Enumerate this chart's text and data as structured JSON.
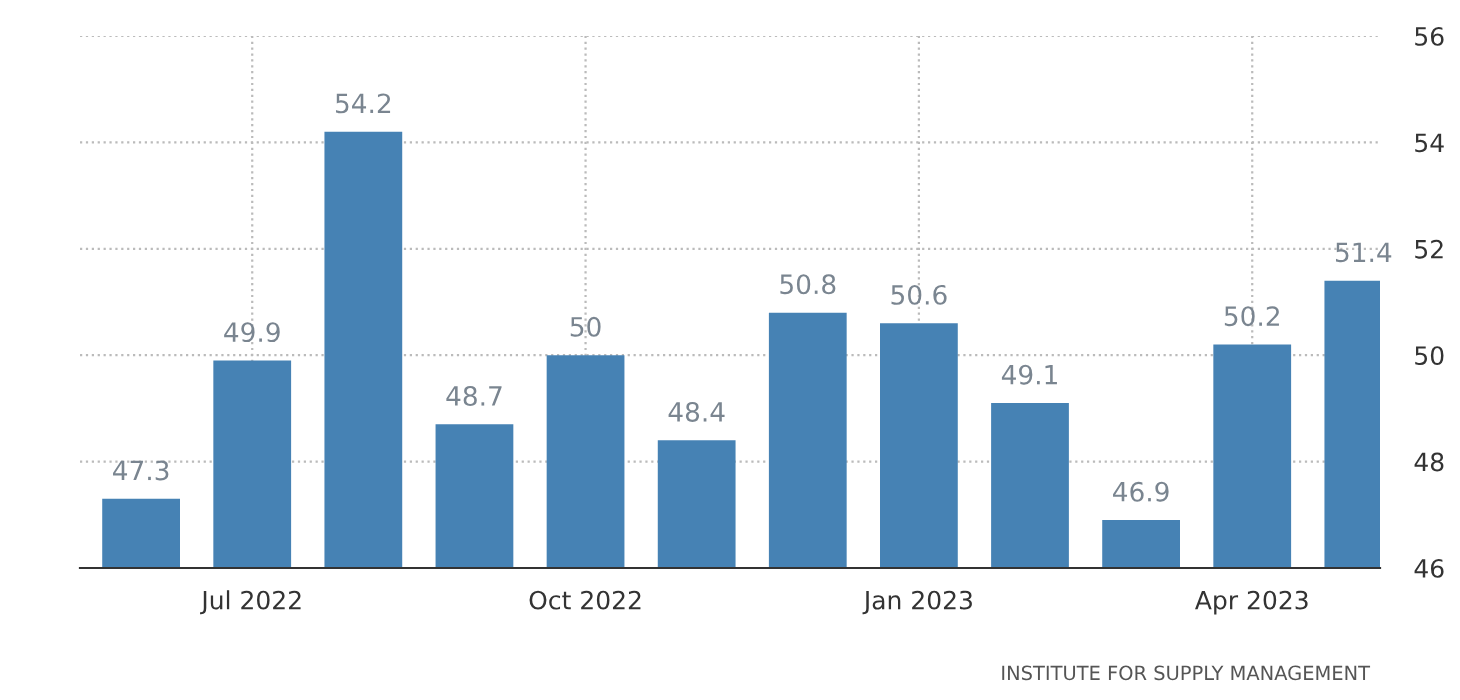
{
  "chart_data": {
    "type": "bar",
    "categories": [
      null,
      "Jul 2022",
      null,
      null,
      "Oct 2022",
      null,
      null,
      "Jan 2023",
      null,
      null,
      "Apr 2023",
      null
    ],
    "values": [
      47.3,
      49.9,
      54.2,
      48.7,
      50,
      48.4,
      50.8,
      50.6,
      49.1,
      46.9,
      50.2,
      51.4
    ],
    "color": "#4682b4",
    "ylim": [
      46,
      56
    ],
    "yticks": [
      46,
      48,
      50,
      52,
      54,
      56
    ],
    "grid": true,
    "data_labels": true,
    "annotations": [
      "INSTITUTE FOR SUPPLY MANAGEMENT"
    ]
  }
}
